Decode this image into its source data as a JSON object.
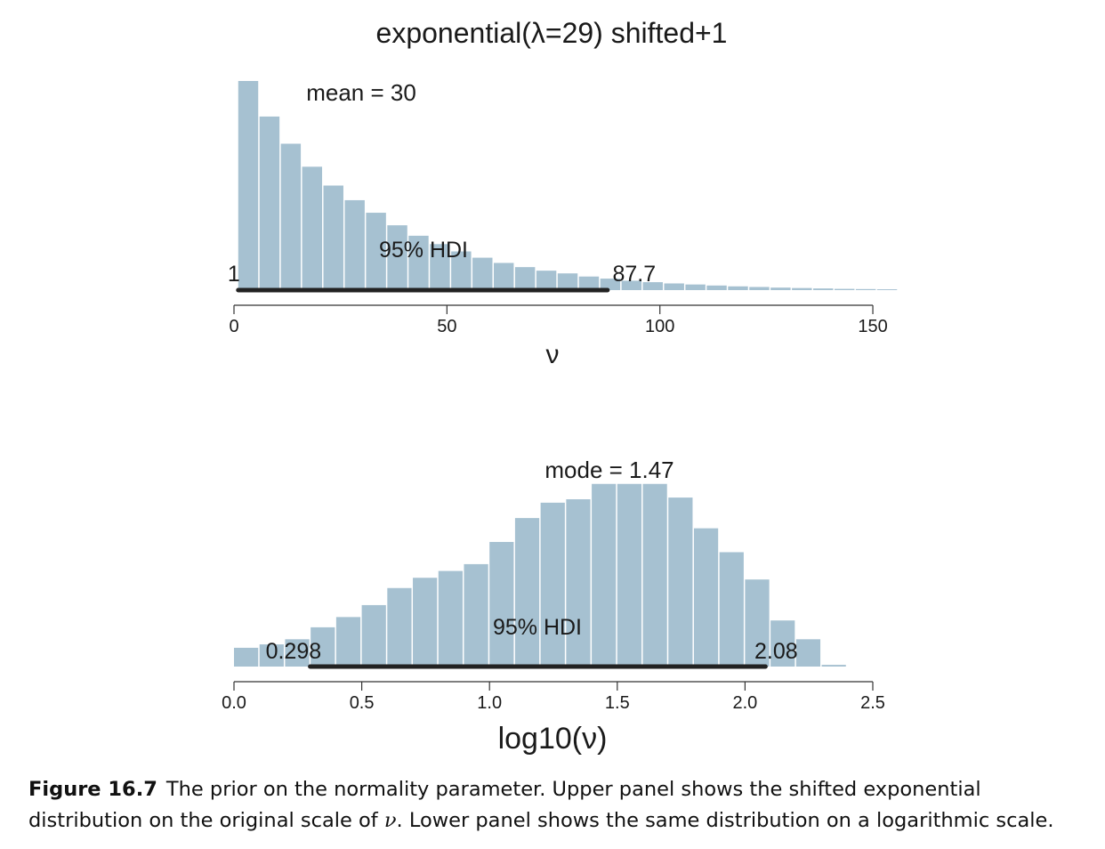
{
  "chart_data": [
    {
      "type": "bar",
      "title": "exponential(λ=29) shifted+1",
      "xlabel": "ν",
      "ylabel": "",
      "xlim": [
        0,
        155
      ],
      "xticks": [
        0,
        50,
        100,
        150
      ],
      "xtick_labels": [
        "0",
        "50",
        "100",
        "150"
      ],
      "bin_edges": [
        1,
        6,
        11,
        16,
        21,
        26,
        31,
        36,
        41,
        46,
        51,
        56,
        61,
        66,
        71,
        76,
        81,
        86,
        91,
        96,
        101,
        106,
        111,
        116,
        121,
        126,
        131,
        136,
        141,
        146,
        151,
        156
      ],
      "values": [
        100,
        83,
        70,
        59,
        50,
        43,
        37,
        31,
        26,
        22,
        18.5,
        15.5,
        13,
        11,
        9.3,
        8,
        6.5,
        5.5,
        4.5,
        3.8,
        3.2,
        2.7,
        2.2,
        1.8,
        1.5,
        1.2,
        1.0,
        0.8,
        0.6,
        0.5,
        0.4
      ],
      "ylim": [
        0,
        100
      ],
      "stat_label": "mean = 30",
      "hdi": {
        "label": "95% HDI",
        "low": 1,
        "high": 87.7,
        "low_label": "1",
        "high_label": "87.7"
      },
      "bar_color": "#a6c1d1",
      "hdi_color": "#222222"
    },
    {
      "type": "bar",
      "title": "",
      "xlabel": "log10(ν)",
      "ylabel": "",
      "xlim": [
        0,
        2.5
      ],
      "xticks": [
        0.0,
        0.5,
        1.0,
        1.5,
        2.0,
        2.5
      ],
      "xtick_labels": [
        "0.0",
        "0.5",
        "1.0",
        "1.5",
        "2.0",
        "2.5"
      ],
      "bin_edges": [
        0,
        0.1,
        0.2,
        0.3,
        0.4,
        0.5,
        0.6,
        0.7,
        0.8,
        0.9,
        1.0,
        1.1,
        1.2,
        1.3,
        1.4,
        1.5,
        1.6,
        1.7,
        1.8,
        1.9,
        2.0,
        2.1,
        2.2,
        2.3,
        2.4
      ],
      "values": [
        11,
        13,
        16,
        23,
        29,
        36,
        46,
        52,
        56,
        60,
        73,
        87,
        96,
        98,
        107,
        107,
        107,
        99,
        81,
        67,
        51,
        27,
        16,
        1
      ],
      "ylim": [
        0,
        110
      ],
      "stat_label": "mode = 1.47",
      "hdi": {
        "label": "95% HDI",
        "low": 0.298,
        "high": 2.08,
        "low_label": "0.298",
        "high_label": "2.08"
      },
      "bar_color": "#a6c1d1",
      "hdi_color": "#222222"
    }
  ],
  "caption": {
    "label": "Figure 16.7",
    "text": "The prior on the normality parameter. Upper panel shows the shifted exponential distribution on the original scale of ",
    "symbol": "ν",
    "text_end": ". Lower panel shows the same distribution on a logarithmic scale."
  }
}
